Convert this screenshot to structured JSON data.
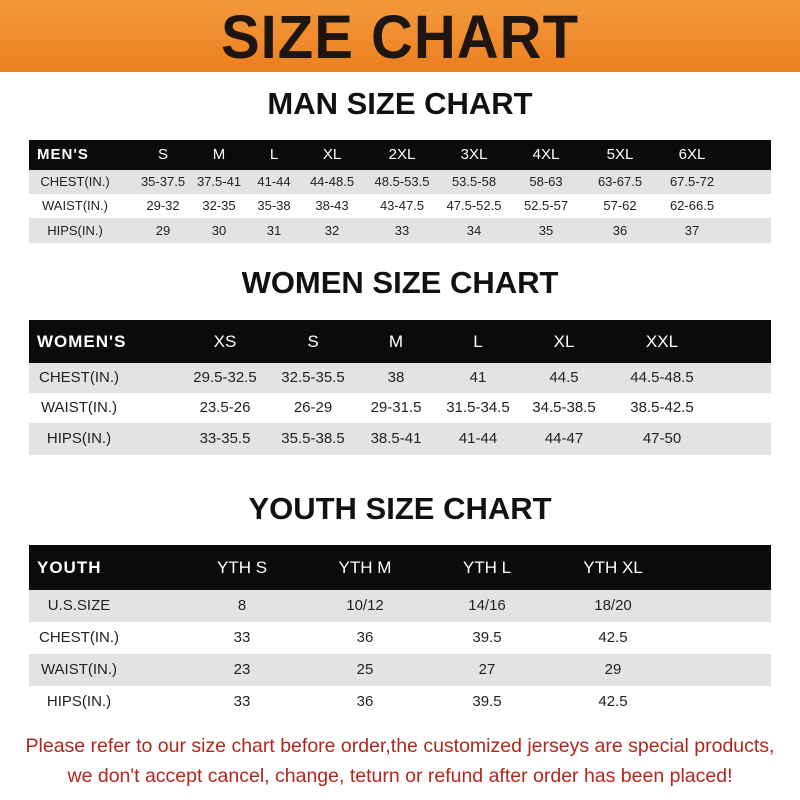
{
  "banner": {
    "title": "SIZE CHART",
    "color": "#ef8a2b"
  },
  "men": {
    "title": "MAN SIZE CHART",
    "header": [
      "MEN'S",
      "S",
      "M",
      "L",
      "XL",
      "2XL",
      "3XL",
      "4XL",
      "5XL",
      "6XL"
    ],
    "rows": [
      [
        "CHEST(IN.)",
        "35-37.5",
        "37.5-41",
        "41-44",
        "44-48.5",
        "48.5-53.5",
        "53.5-58",
        "58-63",
        "63-67.5",
        "67.5-72"
      ],
      [
        "WAIST(IN.)",
        "29-32",
        "32-35",
        "35-38",
        "38-43",
        "43-47.5",
        "47.5-52.5",
        "52.5-57",
        "57-62",
        "62-66.5"
      ],
      [
        "HIPS(IN.)",
        "29",
        "30",
        "31",
        "32",
        "33",
        "34",
        "35",
        "36",
        "37"
      ]
    ]
  },
  "women": {
    "title": "WOMEN SIZE CHART",
    "header": [
      "WOMEN'S",
      "XS",
      "S",
      "M",
      "L",
      "XL",
      "XXL"
    ],
    "rows": [
      [
        "CHEST(IN.)",
        "29.5-32.5",
        "32.5-35.5",
        "38",
        "41",
        "44.5",
        "44.5-48.5"
      ],
      [
        "WAIST(IN.)",
        "23.5-26",
        "26-29",
        "29-31.5",
        "31.5-34.5",
        "34.5-38.5",
        "38.5-42.5"
      ],
      [
        "HIPS(IN.)",
        "33-35.5",
        "35.5-38.5",
        "38.5-41",
        "41-44",
        "44-47",
        "47-50"
      ]
    ]
  },
  "youth": {
    "title": "YOUTH SIZE CHART",
    "header": [
      "YOUTH",
      "YTH S",
      "YTH M",
      "YTH L",
      "YTH XL"
    ],
    "rows": [
      [
        "U.S.SIZE",
        "8",
        "10/12",
        "14/16",
        "18/20"
      ],
      [
        "CHEST(IN.)",
        "33",
        "36",
        "39.5",
        "42.5"
      ],
      [
        "WAIST(IN.)",
        "23",
        "25",
        "27",
        "29"
      ],
      [
        "HIPS(IN.)",
        "33",
        "36",
        "39.5",
        "42.5"
      ]
    ]
  },
  "footer": {
    "line1": "Please refer to our size chart before order,the customized jerseys are special products,",
    "line2": "we don't accept cancel, change, teturn or refund after order has been placed!",
    "color": "#b3261e"
  }
}
